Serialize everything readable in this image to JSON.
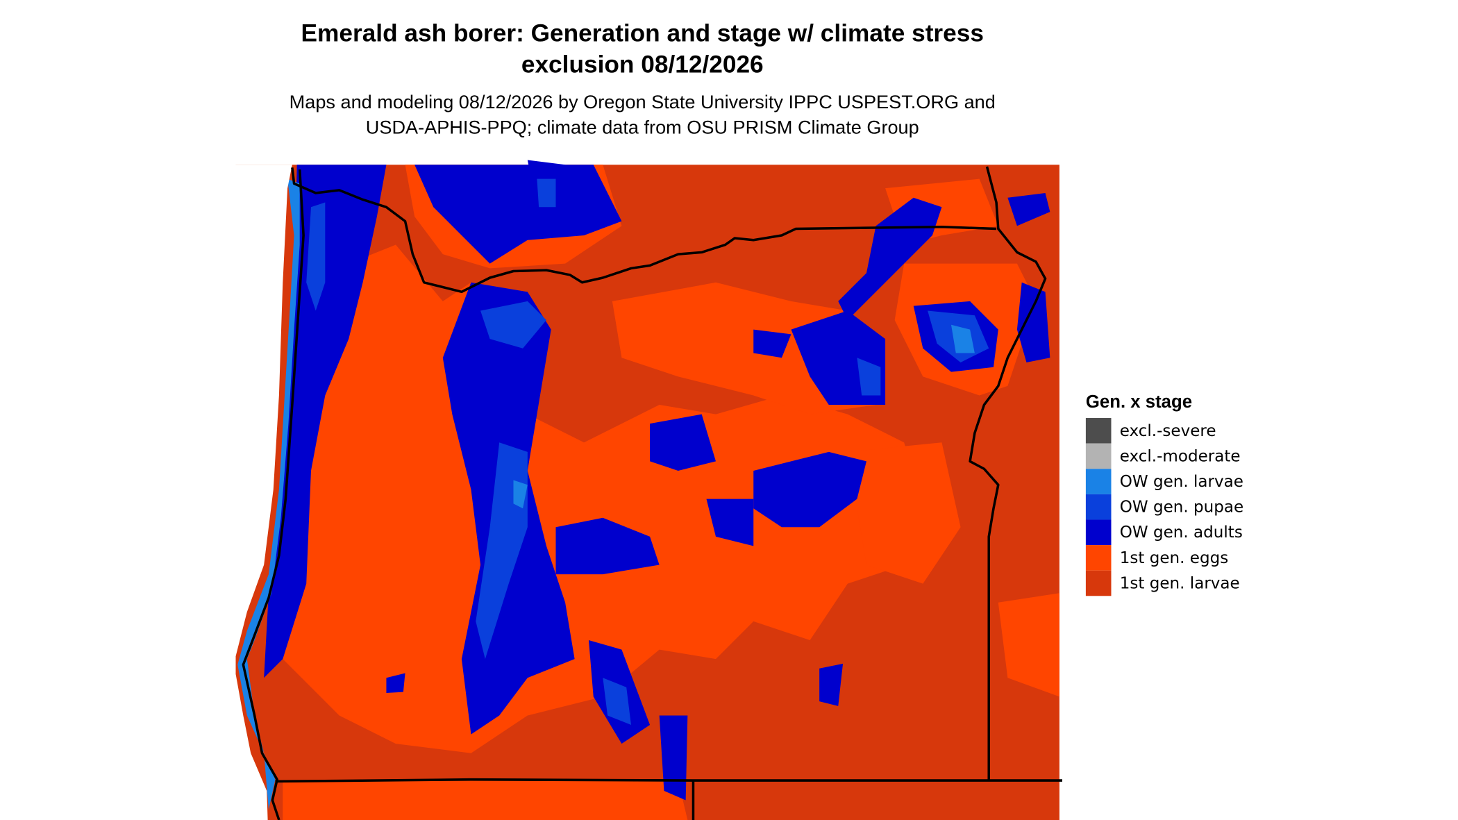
{
  "header": {
    "title_lines": [
      "Emerald ash borer: Generation and stage w/ climate stress",
      "exclusion 08/12/2026"
    ],
    "subtitle_lines": [
      "Maps and modeling 08/12/2026 by Oregon State University IPPC USPEST.ORG and",
      "USDA-APHIS-PPQ; climate data from OSU PRISM Climate Group"
    ]
  },
  "legend": {
    "title": "Gen. x stage",
    "items": [
      {
        "label": "excl.-severe",
        "color": "#4d4d4d"
      },
      {
        "label": "excl.-moderate",
        "color": "#b3b3b3"
      },
      {
        "label": "OW gen. larvae",
        "color": "#1a82e6"
      },
      {
        "label": "OW gen. pupae",
        "color": "#0a40dc"
      },
      {
        "label": "OW gen. adults",
        "color": "#0000cd"
      },
      {
        "label": "1st gen. eggs",
        "color": "#ff4500"
      },
      {
        "label": "1st gen. larvae",
        "color": "#d7380c"
      }
    ]
  }
}
